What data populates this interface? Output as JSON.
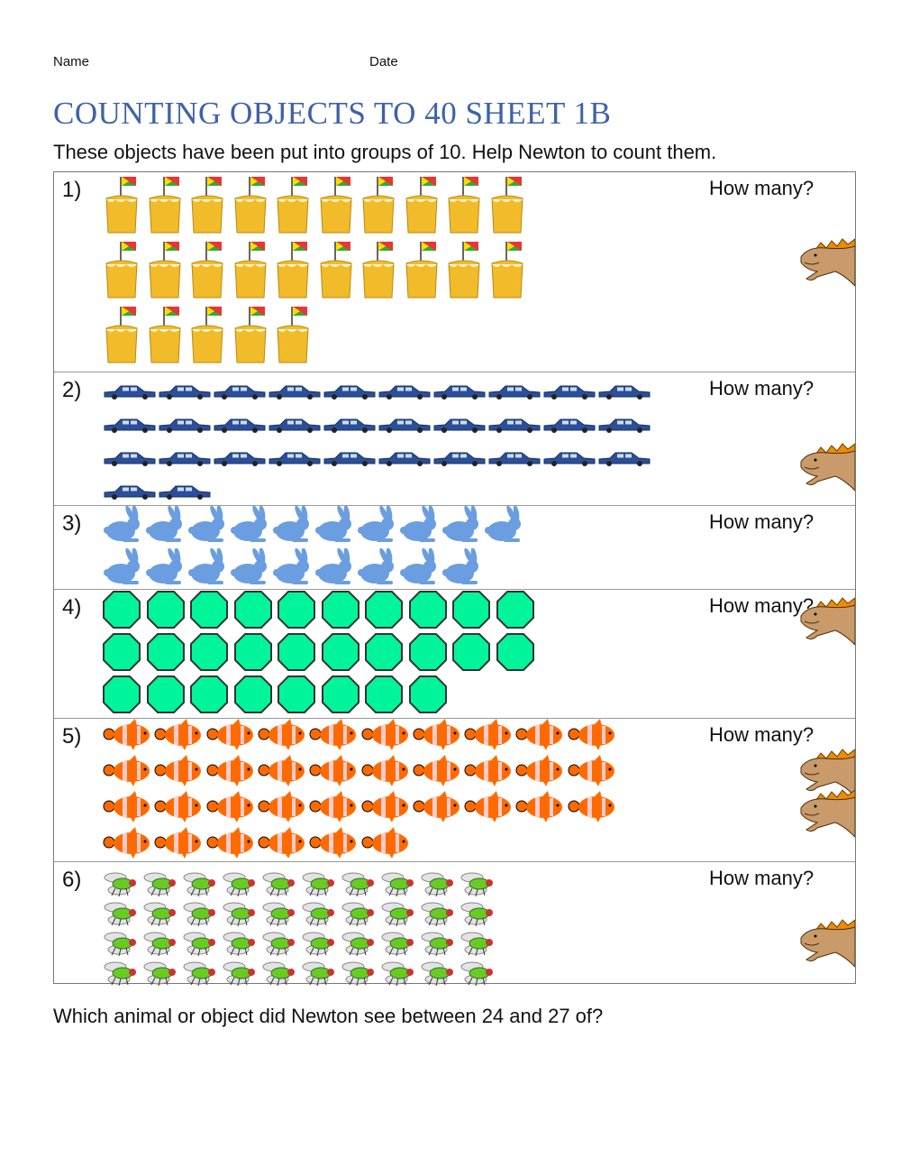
{
  "header": {
    "name_label": "Name",
    "date_label": "Date"
  },
  "title": "COUNTING OBJECTS TO 40 SHEET 1B",
  "intro": "These objects have been put into groups of 10. Help Newton to count them.",
  "how_many": "How many?",
  "sections": [
    {
      "number": "1)",
      "object": "sandcastle",
      "count": 25
    },
    {
      "number": "2)",
      "object": "car",
      "count": 32
    },
    {
      "number": "3)",
      "object": "rabbit",
      "count": 19
    },
    {
      "number": "4)",
      "object": "octagon",
      "count": 28
    },
    {
      "number": "5)",
      "object": "clownfish",
      "count": 36
    },
    {
      "number": "6)",
      "object": "fly",
      "count": 40
    }
  ],
  "colors": {
    "title": "#3d62a8",
    "sand": "#f2bb2a",
    "car": "#2b4f9a",
    "rabbit": "#6a9ee0",
    "octagon": "#00f59a",
    "fish": "#ff6a00",
    "lizard": "#c99a6a"
  },
  "question": "Which animal or object did Newton see between 24 and 27 of?"
}
